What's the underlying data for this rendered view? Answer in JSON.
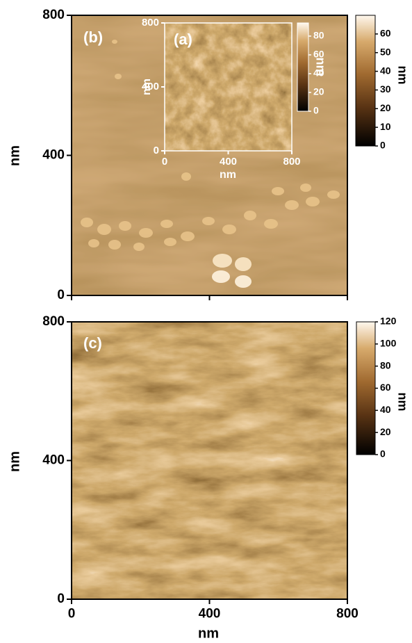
{
  "chart_data": [
    {
      "type": "heatmap",
      "label": "(b)",
      "ylabel": "nm",
      "xlim": [
        0,
        800
      ],
      "ylim": [
        0,
        800
      ],
      "xticks": [
        0,
        400,
        800
      ],
      "xtick_labels": false,
      "yticks": [
        0,
        400,
        800
      ],
      "colorbar": {
        "label": "nm",
        "lim": [
          0,
          70
        ],
        "ticks": [
          0,
          10,
          20,
          30,
          40,
          50,
          60
        ]
      }
    },
    {
      "type": "heatmap",
      "label": "(a)",
      "xlabel": "nm",
      "ylabel": "nm",
      "xlim": [
        0,
        800
      ],
      "ylim": [
        0,
        800
      ],
      "xticks": [
        0,
        400,
        800
      ],
      "yticks": [
        0,
        400,
        800
      ],
      "colorbar": {
        "label": "nm",
        "lim": [
          0,
          94
        ],
        "ticks": [
          0,
          20,
          40,
          60,
          80
        ]
      }
    },
    {
      "type": "heatmap",
      "label": "(c)",
      "xlabel": "nm",
      "ylabel": "nm",
      "xlim": [
        0,
        800
      ],
      "ylim": [
        0,
        800
      ],
      "xticks": [
        0,
        400,
        800
      ],
      "yticks": [
        0,
        400,
        800
      ],
      "colorbar": {
        "label": "nm",
        "lim": [
          0,
          120
        ],
        "ticks": [
          0,
          20,
          40,
          60,
          80,
          100,
          120
        ]
      }
    }
  ]
}
